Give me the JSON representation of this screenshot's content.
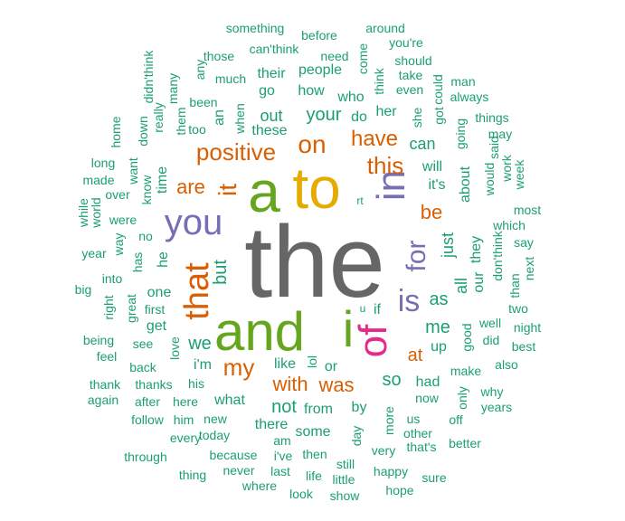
{
  "colors": {
    "gray": "#666666",
    "green": "#66a61e",
    "gold": "#e6ab02",
    "purple": "#7570b3",
    "orange": "#d95f02",
    "magenta": "#e7298a",
    "teal": "#1b9e77"
  },
  "words": [
    {
      "text": "the",
      "color": "gray",
      "vertical": false
    },
    {
      "text": "a",
      "color": "green",
      "vertical": false
    },
    {
      "text": "to",
      "color": "gold",
      "vertical": false
    },
    {
      "text": "and",
      "color": "green",
      "vertical": false
    },
    {
      "text": "i",
      "color": "green",
      "vertical": false
    },
    {
      "text": "of",
      "color": "magenta",
      "vertical": true
    },
    {
      "text": "in",
      "color": "purple",
      "vertical": true
    },
    {
      "text": "you",
      "color": "purple",
      "vertical": false
    },
    {
      "text": "that",
      "color": "orange",
      "vertical": true
    },
    {
      "text": "is",
      "color": "purple",
      "vertical": false
    },
    {
      "text": "for",
      "color": "purple",
      "vertical": true
    },
    {
      "text": "it",
      "color": "orange",
      "vertical": true
    },
    {
      "text": "on",
      "color": "orange",
      "vertical": false
    },
    {
      "text": "positive",
      "color": "orange",
      "vertical": false
    },
    {
      "text": "this",
      "color": "orange",
      "vertical": false
    },
    {
      "text": "have",
      "color": "orange",
      "vertical": false
    },
    {
      "text": "my",
      "color": "orange",
      "vertical": false
    },
    {
      "text": "with",
      "color": "orange",
      "vertical": false
    },
    {
      "text": "was",
      "color": "orange",
      "vertical": false
    },
    {
      "text": "be",
      "color": "orange",
      "vertical": false
    },
    {
      "text": "are",
      "color": "orange",
      "vertical": false
    },
    {
      "text": "at",
      "color": "orange",
      "vertical": false
    },
    {
      "text": "but",
      "color": "teal",
      "vertical": true
    },
    {
      "text": "your",
      "color": "teal",
      "vertical": false
    },
    {
      "text": "me",
      "color": "teal",
      "vertical": false
    },
    {
      "text": "as",
      "color": "teal",
      "vertical": false
    },
    {
      "text": "we",
      "color": "teal",
      "vertical": false
    },
    {
      "text": "not",
      "color": "teal",
      "vertical": false
    },
    {
      "text": "so",
      "color": "teal",
      "vertical": false
    },
    {
      "text": "just",
      "color": "teal",
      "vertical": true
    },
    {
      "text": "all",
      "color": "teal",
      "vertical": true
    },
    {
      "text": "they",
      "color": "teal",
      "vertical": true
    },
    {
      "text": "can",
      "color": "teal",
      "vertical": false
    },
    {
      "text": "out",
      "color": "teal",
      "vertical": false
    },
    {
      "text": "will",
      "color": "teal",
      "vertical": false
    },
    {
      "text": "it's",
      "color": "teal",
      "vertical": false
    },
    {
      "text": "our",
      "color": "teal",
      "vertical": true
    },
    {
      "text": "like",
      "color": "teal",
      "vertical": false
    },
    {
      "text": "if",
      "color": "teal",
      "vertical": false
    },
    {
      "text": "up",
      "color": "teal",
      "vertical": false
    },
    {
      "text": "or",
      "color": "teal",
      "vertical": false
    },
    {
      "text": "i'm",
      "color": "teal",
      "vertical": false
    },
    {
      "text": "from",
      "color": "teal",
      "vertical": false
    },
    {
      "text": "by",
      "color": "teal",
      "vertical": false
    },
    {
      "text": "what",
      "color": "teal",
      "vertical": false
    },
    {
      "text": "one",
      "color": "teal",
      "vertical": false
    },
    {
      "text": "get",
      "color": "teal",
      "vertical": false
    },
    {
      "text": "he",
      "color": "teal",
      "vertical": true
    },
    {
      "text": "about",
      "color": "teal",
      "vertical": true
    },
    {
      "text": "had",
      "color": "teal",
      "vertical": false
    },
    {
      "text": "do",
      "color": "teal",
      "vertical": false
    },
    {
      "text": "her",
      "color": "teal",
      "vertical": false
    },
    {
      "text": "how",
      "color": "teal",
      "vertical": false
    },
    {
      "text": "who",
      "color": "teal",
      "vertical": false
    },
    {
      "text": "people",
      "color": "teal",
      "vertical": false
    },
    {
      "text": "go",
      "color": "teal",
      "vertical": false
    },
    {
      "text": "their",
      "color": "teal",
      "vertical": false
    },
    {
      "text": "these",
      "color": "teal",
      "vertical": false
    },
    {
      "text": "an",
      "color": "teal",
      "vertical": true
    },
    {
      "text": "some",
      "color": "teal",
      "vertical": false
    },
    {
      "text": "there",
      "color": "teal",
      "vertical": false
    },
    {
      "text": "time",
      "color": "teal",
      "vertical": true
    },
    {
      "text": "know",
      "color": "teal",
      "vertical": true
    },
    {
      "text": "love",
      "color": "teal",
      "vertical": true
    },
    {
      "text": "lol",
      "color": "teal",
      "vertical": true
    },
    {
      "text": "would",
      "color": "teal",
      "vertical": true
    },
    {
      "text": "going",
      "color": "teal",
      "vertical": true
    },
    {
      "text": "don'think",
      "color": "teal",
      "vertical": true
    },
    {
      "text": "good",
      "color": "teal",
      "vertical": true
    },
    {
      "text": "make",
      "color": "teal",
      "vertical": false
    },
    {
      "text": "now",
      "color": "teal",
      "vertical": false
    },
    {
      "text": "us",
      "color": "teal",
      "vertical": false
    },
    {
      "text": "more",
      "color": "teal",
      "vertical": true
    },
    {
      "text": "day",
      "color": "teal",
      "vertical": true
    },
    {
      "text": "am",
      "color": "teal",
      "vertical": false
    },
    {
      "text": "then",
      "color": "teal",
      "vertical": false
    },
    {
      "text": "new",
      "color": "teal",
      "vertical": false
    },
    {
      "text": "his",
      "color": "teal",
      "vertical": false
    },
    {
      "text": "see",
      "color": "teal",
      "vertical": false
    },
    {
      "text": "back",
      "color": "teal",
      "vertical": false
    },
    {
      "text": "thanks",
      "color": "teal",
      "vertical": false
    },
    {
      "text": "great",
      "color": "teal",
      "vertical": true
    },
    {
      "text": "first",
      "color": "teal",
      "vertical": false
    },
    {
      "text": "no",
      "color": "teal",
      "vertical": false
    },
    {
      "text": "has",
      "color": "teal",
      "vertical": true
    },
    {
      "text": "were",
      "color": "teal",
      "vertical": false
    },
    {
      "text": "into",
      "color": "teal",
      "vertical": false
    },
    {
      "text": "right",
      "color": "teal",
      "vertical": true
    },
    {
      "text": "been",
      "color": "teal",
      "vertical": false
    },
    {
      "text": "too",
      "color": "teal",
      "vertical": false
    },
    {
      "text": "them",
      "color": "teal",
      "vertical": true
    },
    {
      "text": "when",
      "color": "teal",
      "vertical": true
    },
    {
      "text": "much",
      "color": "teal",
      "vertical": false
    },
    {
      "text": "any",
      "color": "teal",
      "vertical": true
    },
    {
      "text": "those",
      "color": "teal",
      "vertical": false
    },
    {
      "text": "can'think",
      "color": "teal",
      "vertical": false
    },
    {
      "text": "need",
      "color": "teal",
      "vertical": false
    },
    {
      "text": "come",
      "color": "teal",
      "vertical": true
    },
    {
      "text": "think",
      "color": "teal",
      "vertical": true
    },
    {
      "text": "something",
      "color": "teal",
      "vertical": false
    },
    {
      "text": "before",
      "color": "teal",
      "vertical": false
    },
    {
      "text": "around",
      "color": "teal",
      "vertical": false
    },
    {
      "text": "you're",
      "color": "teal",
      "vertical": false
    },
    {
      "text": "should",
      "color": "teal",
      "vertical": false
    },
    {
      "text": "take",
      "color": "teal",
      "vertical": false
    },
    {
      "text": "even",
      "color": "teal",
      "vertical": false
    },
    {
      "text": "could",
      "color": "teal",
      "vertical": true
    },
    {
      "text": "man",
      "color": "teal",
      "vertical": false
    },
    {
      "text": "always",
      "color": "teal",
      "vertical": false
    },
    {
      "text": "she",
      "color": "teal",
      "vertical": true
    },
    {
      "text": "got",
      "color": "teal",
      "vertical": true
    },
    {
      "text": "things",
      "color": "teal",
      "vertical": false
    },
    {
      "text": "said",
      "color": "teal",
      "vertical": true
    },
    {
      "text": "may",
      "color": "teal",
      "vertical": false
    },
    {
      "text": "work",
      "color": "teal",
      "vertical": true
    },
    {
      "text": "week",
      "color": "teal",
      "vertical": true
    },
    {
      "text": "most",
      "color": "teal",
      "vertical": false
    },
    {
      "text": "which",
      "color": "teal",
      "vertical": false
    },
    {
      "text": "say",
      "color": "teal",
      "vertical": false
    },
    {
      "text": "than",
      "color": "teal",
      "vertical": true
    },
    {
      "text": "next",
      "color": "teal",
      "vertical": true
    },
    {
      "text": "two",
      "color": "teal",
      "vertical": false
    },
    {
      "text": "well",
      "color": "teal",
      "vertical": false
    },
    {
      "text": "night",
      "color": "teal",
      "vertical": false
    },
    {
      "text": "did",
      "color": "teal",
      "vertical": false
    },
    {
      "text": "best",
      "color": "teal",
      "vertical": false
    },
    {
      "text": "also",
      "color": "teal",
      "vertical": false
    },
    {
      "text": "why",
      "color": "teal",
      "vertical": false
    },
    {
      "text": "years",
      "color": "teal",
      "vertical": false
    },
    {
      "text": "only",
      "color": "teal",
      "vertical": true
    },
    {
      "text": "off",
      "color": "teal",
      "vertical": false
    },
    {
      "text": "better",
      "color": "teal",
      "vertical": false
    },
    {
      "text": "other",
      "color": "teal",
      "vertical": false
    },
    {
      "text": "that's",
      "color": "teal",
      "vertical": false
    },
    {
      "text": "very",
      "color": "teal",
      "vertical": false
    },
    {
      "text": "sure",
      "color": "teal",
      "vertical": false
    },
    {
      "text": "happy",
      "color": "teal",
      "vertical": false
    },
    {
      "text": "hope",
      "color": "teal",
      "vertical": false
    },
    {
      "text": "still",
      "color": "teal",
      "vertical": false
    },
    {
      "text": "little",
      "color": "teal",
      "vertical": false
    },
    {
      "text": "show",
      "color": "teal",
      "vertical": false
    },
    {
      "text": "life",
      "color": "teal",
      "vertical": false
    },
    {
      "text": "look",
      "color": "teal",
      "vertical": false
    },
    {
      "text": "last",
      "color": "teal",
      "vertical": false
    },
    {
      "text": "i've",
      "color": "teal",
      "vertical": false
    },
    {
      "text": "where",
      "color": "teal",
      "vertical": false
    },
    {
      "text": "never",
      "color": "teal",
      "vertical": false
    },
    {
      "text": "because",
      "color": "teal",
      "vertical": false
    },
    {
      "text": "thing",
      "color": "teal",
      "vertical": false
    },
    {
      "text": "through",
      "color": "teal",
      "vertical": false
    },
    {
      "text": "every",
      "color": "teal",
      "vertical": false
    },
    {
      "text": "today",
      "color": "teal",
      "vertical": false
    },
    {
      "text": "follow",
      "color": "teal",
      "vertical": false
    },
    {
      "text": "him",
      "color": "teal",
      "vertical": false
    },
    {
      "text": "after",
      "color": "teal",
      "vertical": false
    },
    {
      "text": "here",
      "color": "teal",
      "vertical": false
    },
    {
      "text": "again",
      "color": "teal",
      "vertical": false
    },
    {
      "text": "thank",
      "color": "teal",
      "vertical": false
    },
    {
      "text": "feel",
      "color": "teal",
      "vertical": false
    },
    {
      "text": "being",
      "color": "teal",
      "vertical": false
    },
    {
      "text": "big",
      "color": "teal",
      "vertical": false
    },
    {
      "text": "year",
      "color": "teal",
      "vertical": false
    },
    {
      "text": "way",
      "color": "teal",
      "vertical": true
    },
    {
      "text": "while",
      "color": "teal",
      "vertical": true
    },
    {
      "text": "world",
      "color": "teal",
      "vertical": true
    },
    {
      "text": "over",
      "color": "teal",
      "vertical": false
    },
    {
      "text": "made",
      "color": "teal",
      "vertical": false
    },
    {
      "text": "long",
      "color": "teal",
      "vertical": false
    },
    {
      "text": "want",
      "color": "teal",
      "vertical": true
    },
    {
      "text": "home",
      "color": "teal",
      "vertical": true
    },
    {
      "text": "down",
      "color": "teal",
      "vertical": true
    },
    {
      "text": "really",
      "color": "teal",
      "vertical": true
    },
    {
      "text": "didn'think",
      "color": "teal",
      "vertical": true
    },
    {
      "text": "many",
      "color": "teal",
      "vertical": true
    },
    {
      "text": "rt",
      "color": "teal",
      "vertical": false
    },
    {
      "text": "u",
      "color": "teal",
      "vertical": false
    }
  ]
}
